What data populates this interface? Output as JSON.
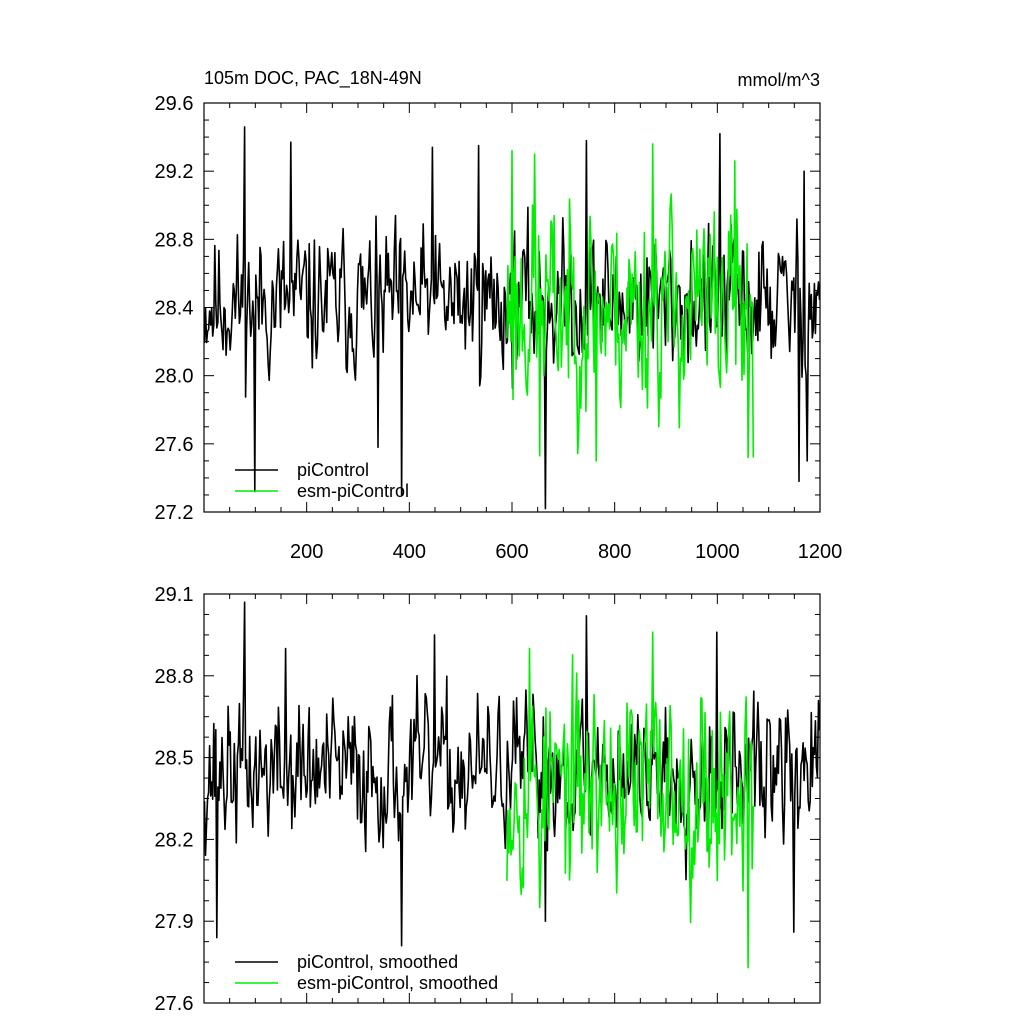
{
  "chart_data": [
    {
      "type": "line",
      "title": "105m DOC, PAC_18N-49N",
      "units": "mmol/m^3",
      "xlim": [
        0,
        1200
      ],
      "ylim": [
        27.2,
        29.6
      ],
      "x_ticks": [
        200,
        400,
        600,
        800,
        1000,
        1200
      ],
      "y_ticks": [
        27.2,
        27.6,
        28.0,
        28.4,
        28.8,
        29.2,
        29.6
      ],
      "y_tick_labels": [
        "27.2",
        "27.6",
        "28.0",
        "28.4",
        "28.8",
        "29.2",
        "29.6"
      ],
      "grid": false,
      "legend_position": "bottom-left",
      "series": [
        {
          "name": "piControl",
          "color": "#000000",
          "x_range": [
            1,
            1200
          ],
          "mean": 28.43,
          "amplitude": 0.27,
          "seed": 11,
          "extremes": [
            [
              80,
              29.46
            ],
            [
              100,
              27.32
            ],
            [
              170,
              29.37
            ],
            [
              340,
              27.58
            ],
            [
              385,
              27.3
            ],
            [
              445,
              29.34
            ],
            [
              535,
              29.35
            ],
            [
              665,
              27.22
            ],
            [
              745,
              29.38
            ],
            [
              1005,
              29.42
            ],
            [
              1160,
              27.38
            ],
            [
              1170,
              29.2
            ],
            [
              1175,
              27.5
            ]
          ]
        },
        {
          "name": "esm-piControl",
          "color": "#00ee00",
          "x_range": [
            590,
            1070
          ],
          "mean": 28.4,
          "amplitude": 0.4,
          "seed": 23,
          "extremes": [
            [
              600,
              29.32
            ],
            [
              645,
              29.3
            ],
            [
              655,
              27.53
            ],
            [
              765,
              27.5
            ],
            [
              875,
              29.36
            ],
            [
              1035,
              29.26
            ],
            [
              1060,
              27.52
            ],
            [
              1070,
              27.52
            ]
          ]
        }
      ]
    },
    {
      "type": "line",
      "title": "",
      "xlim": [
        0,
        1200
      ],
      "ylim": [
        27.6,
        29.1
      ],
      "x_ticks": [
        200,
        400,
        600,
        800,
        1000,
        1200
      ],
      "y_ticks": [
        27.6,
        27.9,
        28.2,
        28.5,
        28.8,
        29.1
      ],
      "y_tick_labels": [
        "27.6",
        "27.9",
        "28.2",
        "28.5",
        "28.8",
        "29.1"
      ],
      "grid": false,
      "legend_position": "bottom-left",
      "series": [
        {
          "name": "piControl, smoothed",
          "color": "#000000",
          "x_range": [
            1,
            1200
          ],
          "mean": 28.45,
          "amplitude": 0.17,
          "seed": 37,
          "extremes": [
            [
              25,
              27.84
            ],
            [
              80,
              29.07
            ],
            [
              160,
              28.9
            ],
            [
              385,
              27.81
            ],
            [
              450,
              28.95
            ],
            [
              665,
              27.9
            ],
            [
              745,
              29.02
            ],
            [
              1000,
              28.96
            ],
            [
              1150,
              27.86
            ]
          ]
        },
        {
          "name": "esm-piControl, smoothed",
          "color": "#00ee00",
          "x_range": [
            590,
            1070
          ],
          "mean": 28.4,
          "amplitude": 0.24,
          "seed": 53,
          "extremes": [
            [
              635,
              28.9
            ],
            [
              655,
              27.95
            ],
            [
              875,
              28.96
            ],
            [
              1060,
              27.73
            ]
          ]
        }
      ]
    }
  ]
}
